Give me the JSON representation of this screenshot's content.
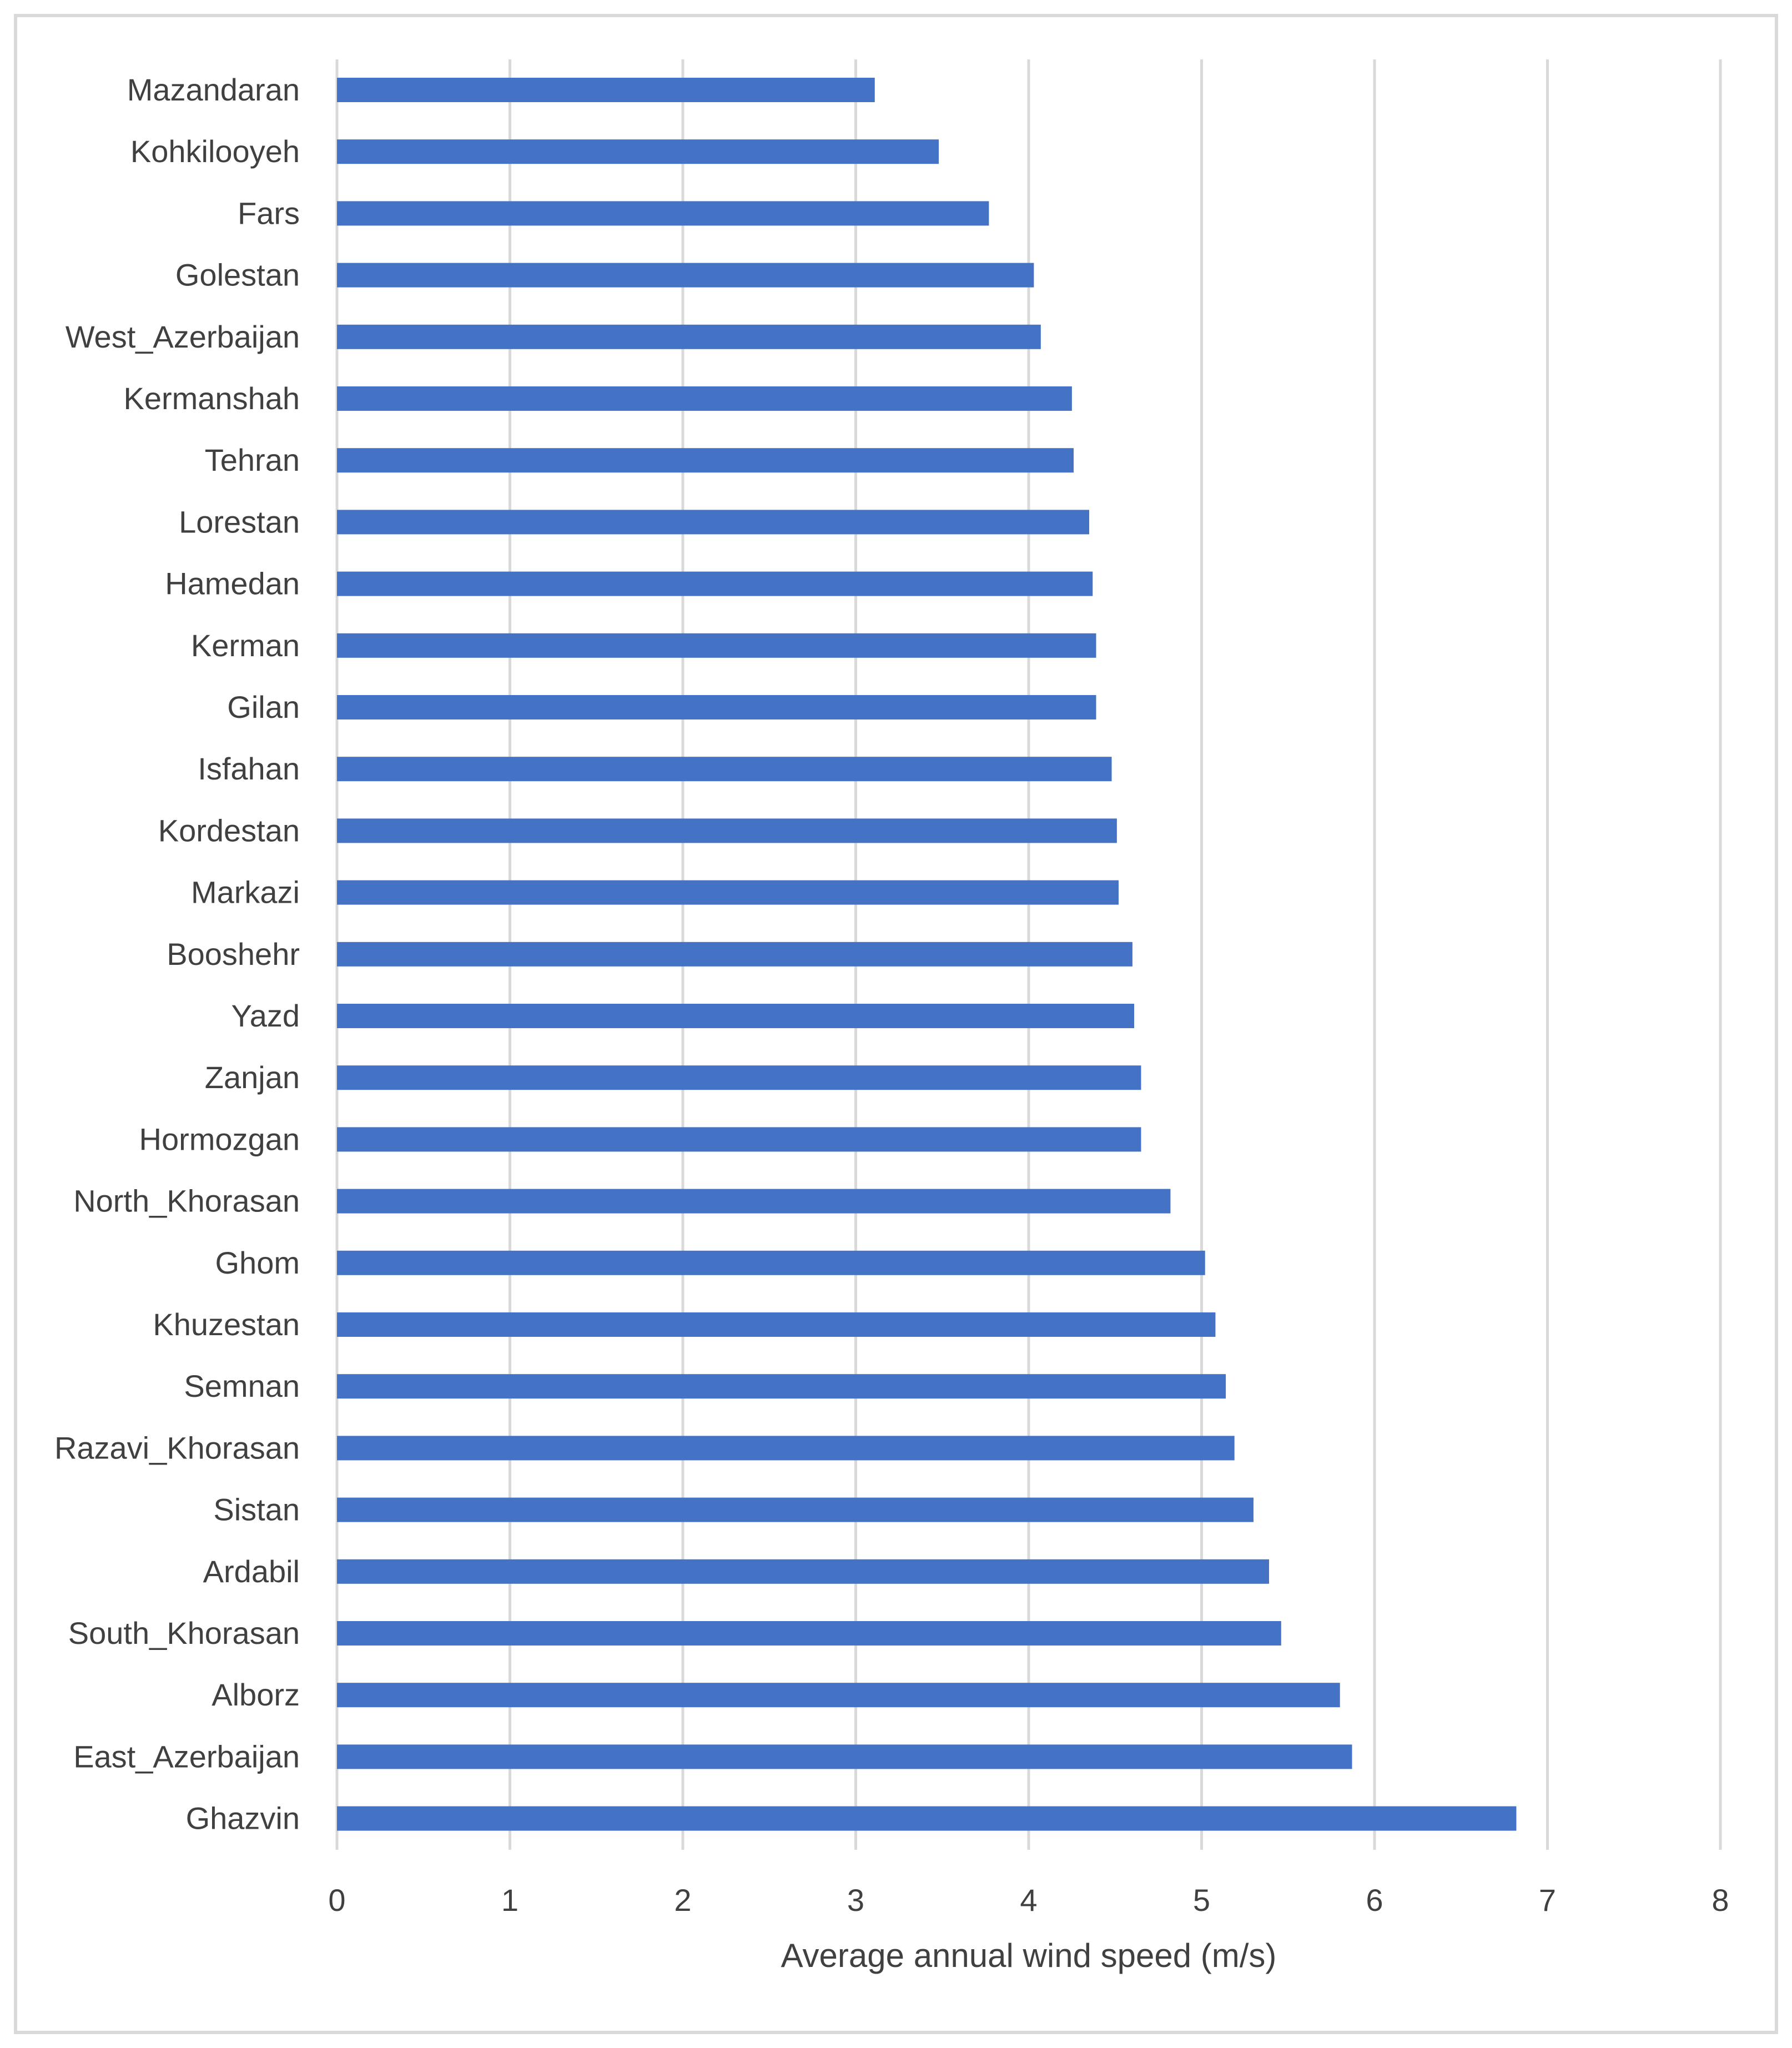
{
  "chart_data": {
    "type": "bar",
    "orientation": "horizontal",
    "title": "",
    "xlabel": "Average annual wind speed (m/s)",
    "ylabel": "",
    "xlim": [
      0,
      8
    ],
    "xticks": [
      "0",
      "1",
      "2",
      "3",
      "4",
      "5",
      "6",
      "7",
      "8"
    ],
    "grid": "vertical",
    "bar_color": "#4472c4",
    "grid_color": "#d9d9d9",
    "text_color": "#404040",
    "categories": [
      "Mazandaran",
      "Kohkilooyeh",
      "Fars",
      "Golestan",
      "West_Azerbaijan",
      "Kermanshah",
      "Tehran",
      "Lorestan",
      "Hamedan",
      "Kerman",
      "Gilan",
      "Isfahan",
      "Kordestan",
      "Markazi",
      "Booshehr",
      "Yazd",
      "Zanjan",
      "Hormozgan",
      "North_Khorasan",
      "Ghom",
      "Khuzestan",
      "Semnan",
      "Razavi_Khorasan",
      "Sistan",
      "Ardabil",
      "South_Khorasan",
      "Alborz",
      "East_Azerbaijan",
      "Ghazvin"
    ],
    "values": [
      3.11,
      3.48,
      3.77,
      4.03,
      4.07,
      4.25,
      4.26,
      4.35,
      4.37,
      4.39,
      4.39,
      4.48,
      4.51,
      4.52,
      4.6,
      4.61,
      4.65,
      4.65,
      4.82,
      5.02,
      5.08,
      5.14,
      5.19,
      5.3,
      5.39,
      5.46,
      5.8,
      5.87,
      6.82
    ]
  }
}
